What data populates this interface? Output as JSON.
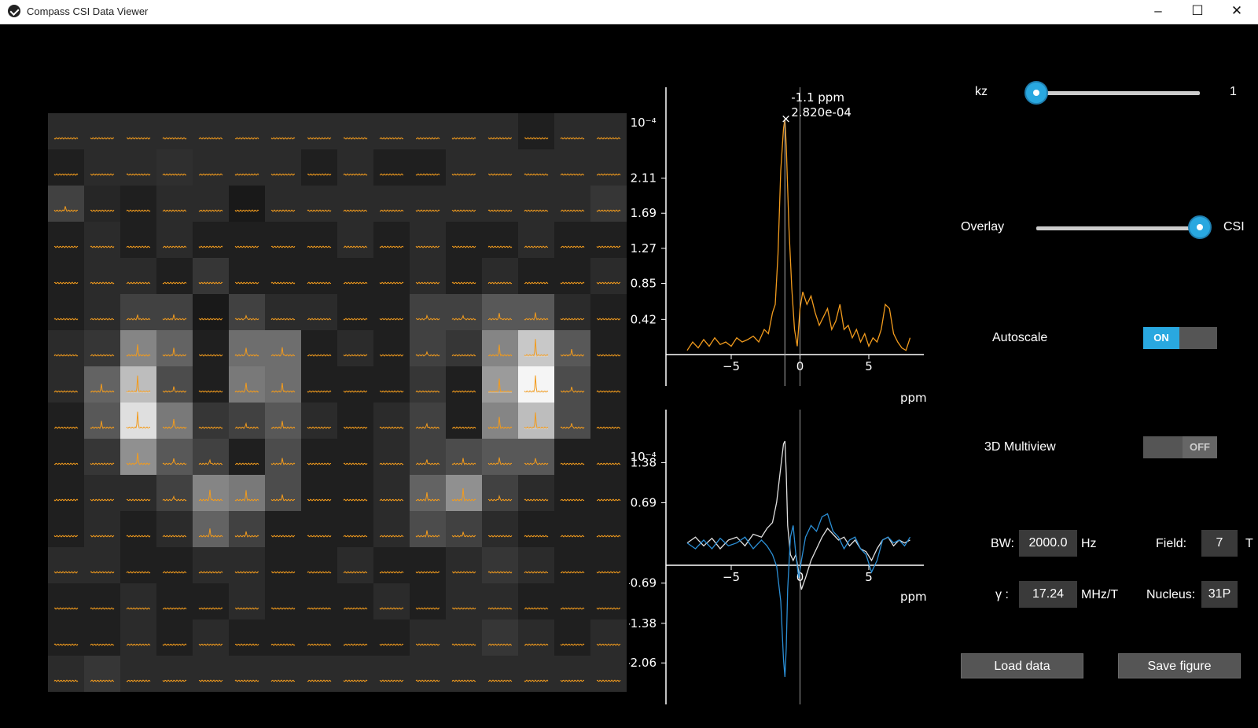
{
  "window": {
    "title": "Compass CSI Data Viewer",
    "minimize": "–",
    "maximize": "☐",
    "close": "✕"
  },
  "grid": {
    "rows": 16,
    "cols": 16,
    "intensity": [
      [
        0.1,
        0.1,
        0.1,
        0.1,
        0.1,
        0.1,
        0.1,
        0.1,
        0.1,
        0.1,
        0.1,
        0.1,
        0.1,
        0.05,
        0.1,
        0.1
      ],
      [
        0.05,
        0.1,
        0.1,
        0.12,
        0.1,
        0.1,
        0.1,
        0.05,
        0.1,
        0.05,
        0.05,
        0.1,
        0.1,
        0.1,
        0.1,
        0.1
      ],
      [
        0.2,
        0.08,
        0.05,
        0.1,
        0.1,
        0.02,
        0.1,
        0.1,
        0.1,
        0.1,
        0.1,
        0.1,
        0.1,
        0.1,
        0.1,
        0.15
      ],
      [
        0.05,
        0.1,
        0.05,
        0.1,
        0.05,
        0.05,
        0.05,
        0.05,
        0.1,
        0.05,
        0.1,
        0.05,
        0.05,
        0.1,
        0.05,
        0.05
      ],
      [
        0.05,
        0.1,
        0.1,
        0.05,
        0.15,
        0.05,
        0.05,
        0.05,
        0.05,
        0.05,
        0.1,
        0.05,
        0.1,
        0.05,
        0.05,
        0.1
      ],
      [
        0.05,
        0.1,
        0.2,
        0.2,
        0.02,
        0.2,
        0.1,
        0.1,
        0.05,
        0.05,
        0.2,
        0.2,
        0.3,
        0.3,
        0.1,
        0.05
      ],
      [
        0.1,
        0.15,
        0.5,
        0.35,
        0.05,
        0.4,
        0.4,
        0.05,
        0.1,
        0.05,
        0.2,
        0.15,
        0.5,
        0.8,
        0.3,
        0.05
      ],
      [
        0.1,
        0.35,
        0.75,
        0.25,
        0.05,
        0.45,
        0.4,
        0.05,
        0.05,
        0.05,
        0.15,
        0.05,
        0.6,
        1.0,
        0.25,
        0.05
      ],
      [
        0.05,
        0.3,
        0.9,
        0.45,
        0.15,
        0.2,
        0.3,
        0.1,
        0.05,
        0.1,
        0.2,
        0.05,
        0.5,
        0.75,
        0.25,
        0.05
      ],
      [
        0.05,
        0.15,
        0.55,
        0.3,
        0.2,
        0.05,
        0.25,
        0.05,
        0.05,
        0.1,
        0.2,
        0.25,
        0.3,
        0.3,
        0.05,
        0.05
      ],
      [
        0.05,
        0.1,
        0.1,
        0.2,
        0.5,
        0.45,
        0.25,
        0.05,
        0.05,
        0.1,
        0.35,
        0.55,
        0.2,
        0.1,
        0.05,
        0.05
      ],
      [
        0.05,
        0.1,
        0.05,
        0.1,
        0.35,
        0.2,
        0.05,
        0.05,
        0.05,
        0.1,
        0.25,
        0.2,
        0.1,
        0.05,
        0.05,
        0.05
      ],
      [
        0.1,
        0.1,
        0.05,
        0.05,
        0.1,
        0.1,
        0.05,
        0.05,
        0.1,
        0.05,
        0.05,
        0.1,
        0.15,
        0.1,
        0.05,
        0.05
      ],
      [
        0.05,
        0.05,
        0.1,
        0.05,
        0.05,
        0.1,
        0.05,
        0.05,
        0.05,
        0.1,
        0.05,
        0.1,
        0.1,
        0.05,
        0.05,
        0.05
      ],
      [
        0.05,
        0.05,
        0.1,
        0.05,
        0.1,
        0.05,
        0.05,
        0.05,
        0.05,
        0.05,
        0.1,
        0.1,
        0.15,
        0.1,
        0.05,
        0.1
      ],
      [
        0.1,
        0.15,
        0.1,
        0.1,
        0.1,
        0.1,
        0.1,
        0.1,
        0.1,
        0.1,
        0.1,
        0.1,
        0.1,
        0.1,
        0.1,
        0.1
      ]
    ]
  },
  "chart_data": [
    {
      "type": "line",
      "x_ticks": [
        "−5",
        "0",
        "5"
      ],
      "y_ticks": [
        "0.42",
        "0.85",
        "1.27",
        "1.69",
        "2.11"
      ],
      "y_multiplier": "×10⁻⁴",
      "xlabel": "ppm",
      "xlim": [
        -9,
        9
      ],
      "annotation": {
        "ppm_label": "-1.1 ppm",
        "value_label": "2.820e-04",
        "x": -1.1,
        "y": 2.82
      },
      "series": [
        {
          "color": "#f29b1d",
          "x": [
            -8.2,
            -7.8,
            -7.4,
            -7.0,
            -6.6,
            -6.2,
            -5.8,
            -5.4,
            -5.0,
            -4.6,
            -4.2,
            -3.8,
            -3.4,
            -3.0,
            -2.6,
            -2.3,
            -2.0,
            -1.8,
            -1.6,
            -1.4,
            -1.2,
            -1.1,
            -1.0,
            -0.8,
            -0.6,
            -0.4,
            -0.2,
            0.0,
            0.2,
            0.5,
            0.8,
            1.1,
            1.4,
            1.7,
            2.0,
            2.3,
            2.6,
            2.9,
            3.2,
            3.5,
            3.8,
            4.1,
            4.4,
            4.7,
            5.0,
            5.3,
            5.6,
            5.9,
            6.2,
            6.5,
            6.8,
            7.1,
            7.4,
            7.7,
            8.0
          ],
          "y": [
            0.05,
            0.15,
            0.08,
            0.18,
            0.1,
            0.2,
            0.12,
            0.15,
            0.1,
            0.2,
            0.15,
            0.18,
            0.22,
            0.15,
            0.3,
            0.25,
            0.5,
            0.6,
            1.2,
            2.2,
            2.7,
            2.82,
            2.5,
            1.5,
            0.8,
            0.3,
            0.1,
            0.55,
            0.75,
            0.6,
            0.7,
            0.5,
            0.35,
            0.45,
            0.55,
            0.3,
            0.4,
            0.6,
            0.3,
            0.35,
            0.2,
            0.3,
            0.15,
            0.25,
            0.1,
            0.2,
            0.15,
            0.3,
            0.6,
            0.55,
            0.25,
            0.15,
            0.08,
            0.05,
            0.2
          ]
        }
      ]
    },
    {
      "type": "line",
      "x_ticks": [
        "−5",
        "0",
        "5"
      ],
      "y_ticks": [
        "-2.06",
        "-1.38",
        "-0.69",
        "0.69",
        "1.38"
      ],
      "y_multiplier": "×10⁻⁴",
      "xlabel": "ppm",
      "xlim": [
        -9,
        9
      ],
      "series": [
        {
          "color": "#e0e0e0",
          "x": [
            -8.2,
            -7.6,
            -7.0,
            -6.4,
            -5.8,
            -5.2,
            -4.6,
            -4.0,
            -3.4,
            -2.8,
            -2.4,
            -2.0,
            -1.7,
            -1.4,
            -1.2,
            -1.1,
            -1.0,
            -0.9,
            -0.7,
            -0.5,
            -0.3,
            -0.1,
            0.1,
            0.4,
            0.8,
            1.2,
            1.6,
            2.0,
            2.4,
            2.8,
            3.2,
            3.6,
            4.0,
            4.4,
            4.8,
            5.2,
            5.6,
            6.0,
            6.4,
            6.8,
            7.2,
            7.6,
            8.0
          ],
          "y": [
            0.0,
            0.1,
            -0.05,
            0.08,
            -0.1,
            0.05,
            0.1,
            -0.05,
            0.15,
            0.1,
            0.25,
            0.35,
            0.7,
            1.3,
            1.7,
            1.75,
            1.2,
            0.3,
            -0.2,
            -0.3,
            -0.2,
            -0.5,
            -0.8,
            -0.6,
            -0.3,
            -0.1,
            0.1,
            0.25,
            0.15,
            0.05,
            0.1,
            -0.05,
            0.05,
            -0.1,
            -0.15,
            -0.3,
            -0.1,
            0.05,
            0.1,
            -0.05,
            0.05,
            0.0,
            0.05
          ]
        },
        {
          "color": "#2b8fd6",
          "x": [
            -8.2,
            -7.6,
            -7.0,
            -6.4,
            -5.8,
            -5.2,
            -4.6,
            -4.0,
            -3.4,
            -2.8,
            -2.4,
            -2.0,
            -1.7,
            -1.4,
            -1.2,
            -1.1,
            -1.0,
            -0.9,
            -0.7,
            -0.5,
            -0.3,
            -0.1,
            0.1,
            0.4,
            0.8,
            1.2,
            1.6,
            2.0,
            2.4,
            2.8,
            3.2,
            3.6,
            4.0,
            4.4,
            4.8,
            5.2,
            5.6,
            6.0,
            6.4,
            6.8,
            7.2,
            7.6,
            8.0
          ],
          "y": [
            0.0,
            -0.1,
            0.05,
            -0.1,
            0.08,
            -0.05,
            0.0,
            0.1,
            -0.1,
            0.05,
            -0.05,
            -0.2,
            -0.4,
            -1.0,
            -2.0,
            -2.3,
            -1.8,
            -0.8,
            0.1,
            0.3,
            -0.2,
            -0.6,
            -0.3,
            0.1,
            0.3,
            0.2,
            0.45,
            0.5,
            0.2,
            0.1,
            -0.1,
            0.05,
            0.1,
            -0.1,
            -0.2,
            -0.5,
            -0.3,
            0.05,
            0.1,
            0.0,
            0.05,
            -0.05,
            0.1
          ]
        }
      ]
    }
  ],
  "controls": {
    "kz": {
      "label": "kz",
      "value": "1",
      "fraction": 0.0
    },
    "overlay": {
      "label": "Overlay",
      "right_label": "CSI",
      "fraction": 1.0
    },
    "autoscale": {
      "label": "Autoscale",
      "state": "ON"
    },
    "multiview": {
      "label": "3D Multiview",
      "state": "OFF"
    },
    "bw": {
      "label": "BW:",
      "value": "2000.0",
      "unit": "Hz"
    },
    "field": {
      "label": "Field:",
      "value": "7",
      "unit": "T"
    },
    "gamma": {
      "label": "γ :",
      "value": "17.24",
      "unit": "MHz/T"
    },
    "nucleus": {
      "label": "Nucleus:",
      "value": "31P"
    },
    "load_button": "Load data",
    "save_button": "Save figure"
  }
}
